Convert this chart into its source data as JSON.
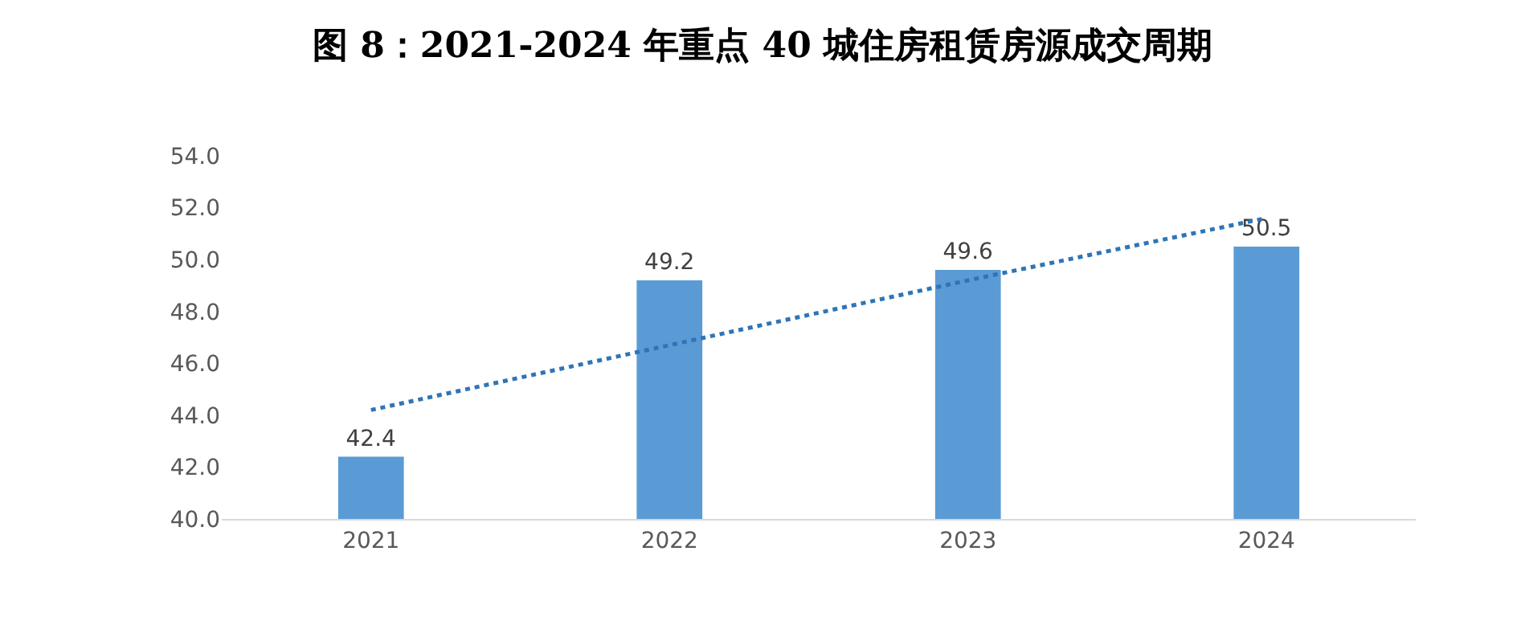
{
  "chart_data": {
    "type": "bar",
    "title": "图 8：2021-2024 年重点 40 城住房租赁房源成交周期",
    "categories": [
      "2021",
      "2022",
      "2023",
      "2024"
    ],
    "series": [
      {
        "color": "#5b9bd5",
        "values": [
          42.4,
          49.2,
          49.6,
          50.5
        ],
        "value_labels": [
          "42.4",
          "49.2",
          "49.6",
          "50.5"
        ]
      },
      {
        "type": "line",
        "color": "#2e75b6",
        "line_style": "dotted",
        "marker": "none",
        "values": [
          44.2,
          46.7,
          49.2,
          51.6
        ]
      }
    ],
    "ylim": [
      40,
      54
    ],
    "yticks": [
      {
        "value": 40,
        "label": "40.0"
      },
      {
        "value": 42,
        "label": "42.0"
      },
      {
        "value": 44,
        "label": "44.0"
      },
      {
        "value": 46,
        "label": "46.0"
      },
      {
        "value": 48,
        "label": "48.0"
      },
      {
        "value": 50,
        "label": "50.0"
      },
      {
        "value": 52,
        "label": "52.0"
      },
      {
        "value": 54,
        "label": "54.0"
      }
    ],
    "grid": false
  }
}
